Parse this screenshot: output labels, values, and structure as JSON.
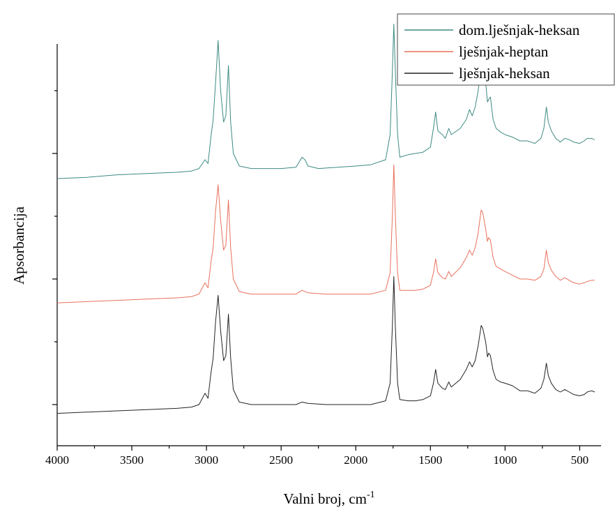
{
  "chart_data": {
    "type": "line",
    "title": "",
    "xlabel": "Valni broj, cm",
    "xlabel_sup": "-1",
    "ylabel": "Apsorbancija",
    "xlim": [
      4000,
      400
    ],
    "x_reversed": true,
    "xticks": [
      4000,
      3500,
      3000,
      2500,
      2000,
      1500,
      1000,
      500
    ],
    "ylim": [
      0,
      3.0
    ],
    "y_tick_labels": false,
    "grid": false,
    "legend_position": "top-right",
    "series": [
      {
        "name": "dom.lješnjak-heksan",
        "color": "#3c8a82",
        "offset": 2.0,
        "points": [
          [
            4000,
            0.05
          ],
          [
            3800,
            0.06
          ],
          [
            3700,
            0.07
          ],
          [
            3600,
            0.08
          ],
          [
            3400,
            0.09
          ],
          [
            3200,
            0.1
          ],
          [
            3100,
            0.11
          ],
          [
            3050,
            0.13
          ],
          [
            3010,
            0.2
          ],
          [
            2990,
            0.17
          ],
          [
            2970,
            0.38
          ],
          [
            2955,
            0.52
          ],
          [
            2940,
            0.8
          ],
          [
            2922,
            1.15
          ],
          [
            2905,
            0.75
          ],
          [
            2885,
            0.5
          ],
          [
            2870,
            0.55
          ],
          [
            2853,
            0.95
          ],
          [
            2838,
            0.5
          ],
          [
            2820,
            0.25
          ],
          [
            2780,
            0.15
          ],
          [
            2700,
            0.13
          ],
          [
            2500,
            0.13
          ],
          [
            2400,
            0.14
          ],
          [
            2360,
            0.22
          ],
          [
            2340,
            0.2
          ],
          [
            2320,
            0.15
          ],
          [
            2250,
            0.13
          ],
          [
            2000,
            0.15
          ],
          [
            1900,
            0.16
          ],
          [
            1800,
            0.2
          ],
          [
            1770,
            0.4
          ],
          [
            1755,
            0.9
          ],
          [
            1745,
            1.28
          ],
          [
            1735,
            0.9
          ],
          [
            1720,
            0.4
          ],
          [
            1705,
            0.22
          ],
          [
            1650,
            0.24
          ],
          [
            1600,
            0.25
          ],
          [
            1550,
            0.26
          ],
          [
            1500,
            0.3
          ],
          [
            1480,
            0.45
          ],
          [
            1465,
            0.58
          ],
          [
            1450,
            0.43
          ],
          [
            1420,
            0.4
          ],
          [
            1400,
            0.37
          ],
          [
            1377,
            0.45
          ],
          [
            1360,
            0.4
          ],
          [
            1300,
            0.45
          ],
          [
            1260,
            0.52
          ],
          [
            1238,
            0.6
          ],
          [
            1220,
            0.55
          ],
          [
            1200,
            0.62
          ],
          [
            1180,
            0.75
          ],
          [
            1160,
            0.95
          ],
          [
            1150,
            0.97
          ],
          [
            1130,
            0.82
          ],
          [
            1118,
            0.66
          ],
          [
            1110,
            0.68
          ],
          [
            1098,
            0.7
          ],
          [
            1080,
            0.52
          ],
          [
            1060,
            0.45
          ],
          [
            1030,
            0.42
          ],
          [
            1000,
            0.4
          ],
          [
            950,
            0.38
          ],
          [
            900,
            0.35
          ],
          [
            850,
            0.35
          ],
          [
            800,
            0.33
          ],
          [
            760,
            0.37
          ],
          [
            740,
            0.45
          ],
          [
            723,
            0.62
          ],
          [
            710,
            0.5
          ],
          [
            690,
            0.43
          ],
          [
            660,
            0.37
          ],
          [
            630,
            0.34
          ],
          [
            600,
            0.37
          ],
          [
            570,
            0.36
          ],
          [
            540,
            0.34
          ],
          [
            500,
            0.33
          ],
          [
            470,
            0.35
          ],
          [
            450,
            0.37
          ],
          [
            420,
            0.37
          ],
          [
            400,
            0.36
          ]
        ]
      },
      {
        "name": "lješnjak-heptan",
        "color": "#e8705c",
        "offset": 1.0,
        "points": [
          [
            4000,
            0.06
          ],
          [
            3800,
            0.07
          ],
          [
            3600,
            0.08
          ],
          [
            3400,
            0.09
          ],
          [
            3200,
            0.1
          ],
          [
            3100,
            0.11
          ],
          [
            3050,
            0.13
          ],
          [
            3010,
            0.22
          ],
          [
            2990,
            0.18
          ],
          [
            2970,
            0.38
          ],
          [
            2955,
            0.5
          ],
          [
            2940,
            0.78
          ],
          [
            2922,
            1.0
          ],
          [
            2905,
            0.72
          ],
          [
            2885,
            0.48
          ],
          [
            2870,
            0.52
          ],
          [
            2853,
            0.88
          ],
          [
            2838,
            0.5
          ],
          [
            2820,
            0.25
          ],
          [
            2780,
            0.15
          ],
          [
            2700,
            0.13
          ],
          [
            2500,
            0.13
          ],
          [
            2400,
            0.13
          ],
          [
            2360,
            0.16
          ],
          [
            2320,
            0.14
          ],
          [
            2200,
            0.13
          ],
          [
            2000,
            0.13
          ],
          [
            1900,
            0.13
          ],
          [
            1800,
            0.16
          ],
          [
            1770,
            0.3
          ],
          [
            1755,
            0.75
          ],
          [
            1745,
            1.16
          ],
          [
            1735,
            0.75
          ],
          [
            1720,
            0.3
          ],
          [
            1705,
            0.16
          ],
          [
            1650,
            0.16
          ],
          [
            1600,
            0.16
          ],
          [
            1550,
            0.17
          ],
          [
            1500,
            0.2
          ],
          [
            1480,
            0.3
          ],
          [
            1465,
            0.41
          ],
          [
            1450,
            0.3
          ],
          [
            1420,
            0.26
          ],
          [
            1400,
            0.25
          ],
          [
            1377,
            0.31
          ],
          [
            1360,
            0.27
          ],
          [
            1300,
            0.34
          ],
          [
            1260,
            0.42
          ],
          [
            1238,
            0.48
          ],
          [
            1220,
            0.44
          ],
          [
            1200,
            0.5
          ],
          [
            1180,
            0.62
          ],
          [
            1160,
            0.8
          ],
          [
            1150,
            0.78
          ],
          [
            1130,
            0.65
          ],
          [
            1118,
            0.55
          ],
          [
            1110,
            0.58
          ],
          [
            1098,
            0.56
          ],
          [
            1080,
            0.42
          ],
          [
            1060,
            0.35
          ],
          [
            1030,
            0.33
          ],
          [
            1000,
            0.31
          ],
          [
            950,
            0.28
          ],
          [
            900,
            0.25
          ],
          [
            850,
            0.25
          ],
          [
            800,
            0.24
          ],
          [
            760,
            0.27
          ],
          [
            740,
            0.33
          ],
          [
            723,
            0.48
          ],
          [
            710,
            0.38
          ],
          [
            690,
            0.32
          ],
          [
            660,
            0.27
          ],
          [
            630,
            0.24
          ],
          [
            600,
            0.26
          ],
          [
            570,
            0.24
          ],
          [
            540,
            0.22
          ],
          [
            500,
            0.21
          ],
          [
            470,
            0.22
          ],
          [
            450,
            0.23
          ],
          [
            420,
            0.24
          ],
          [
            400,
            0.24
          ]
        ]
      },
      {
        "name": "lješnjak-heksan",
        "color": "#222222",
        "offset": 0.0,
        "points": [
          [
            4000,
            0.18
          ],
          [
            3800,
            0.19
          ],
          [
            3600,
            0.2
          ],
          [
            3400,
            0.21
          ],
          [
            3200,
            0.22
          ],
          [
            3100,
            0.23
          ],
          [
            3050,
            0.25
          ],
          [
            3010,
            0.34
          ],
          [
            2990,
            0.3
          ],
          [
            2970,
            0.5
          ],
          [
            2955,
            0.62
          ],
          [
            2940,
            0.9
          ],
          [
            2922,
            1.12
          ],
          [
            2905,
            0.84
          ],
          [
            2885,
            0.6
          ],
          [
            2870,
            0.64
          ],
          [
            2853,
            0.97
          ],
          [
            2838,
            0.62
          ],
          [
            2820,
            0.37
          ],
          [
            2780,
            0.27
          ],
          [
            2700,
            0.25
          ],
          [
            2500,
            0.25
          ],
          [
            2400,
            0.25
          ],
          [
            2360,
            0.27
          ],
          [
            2320,
            0.26
          ],
          [
            2200,
            0.25
          ],
          [
            2000,
            0.25
          ],
          [
            1900,
            0.25
          ],
          [
            1800,
            0.28
          ],
          [
            1770,
            0.42
          ],
          [
            1755,
            0.87
          ],
          [
            1745,
            1.27
          ],
          [
            1735,
            0.87
          ],
          [
            1720,
            0.42
          ],
          [
            1705,
            0.29
          ],
          [
            1650,
            0.28
          ],
          [
            1600,
            0.28
          ],
          [
            1550,
            0.29
          ],
          [
            1500,
            0.32
          ],
          [
            1480,
            0.42
          ],
          [
            1465,
            0.53
          ],
          [
            1450,
            0.42
          ],
          [
            1420,
            0.38
          ],
          [
            1400,
            0.37
          ],
          [
            1377,
            0.43
          ],
          [
            1360,
            0.39
          ],
          [
            1300,
            0.45
          ],
          [
            1260,
            0.53
          ],
          [
            1238,
            0.59
          ],
          [
            1220,
            0.55
          ],
          [
            1200,
            0.6
          ],
          [
            1180,
            0.72
          ],
          [
            1160,
            0.88
          ],
          [
            1150,
            0.86
          ],
          [
            1130,
            0.75
          ],
          [
            1118,
            0.63
          ],
          [
            1110,
            0.66
          ],
          [
            1098,
            0.64
          ],
          [
            1080,
            0.52
          ],
          [
            1060,
            0.45
          ],
          [
            1030,
            0.43
          ],
          [
            1000,
            0.42
          ],
          [
            950,
            0.4
          ],
          [
            900,
            0.36
          ],
          [
            850,
            0.36
          ],
          [
            800,
            0.34
          ],
          [
            760,
            0.38
          ],
          [
            740,
            0.45
          ],
          [
            723,
            0.58
          ],
          [
            710,
            0.48
          ],
          [
            690,
            0.42
          ],
          [
            660,
            0.37
          ],
          [
            630,
            0.35
          ],
          [
            600,
            0.37
          ],
          [
            570,
            0.35
          ],
          [
            540,
            0.33
          ],
          [
            500,
            0.32
          ],
          [
            470,
            0.33
          ],
          [
            450,
            0.35
          ],
          [
            420,
            0.36
          ],
          [
            400,
            0.35
          ]
        ]
      }
    ]
  }
}
